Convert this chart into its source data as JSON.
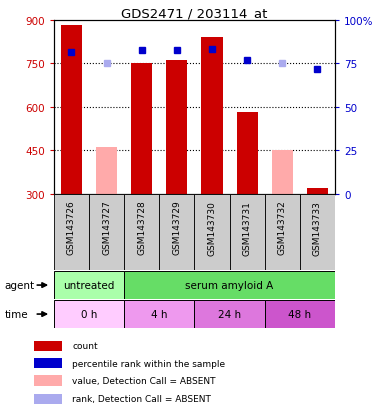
{
  "title": "GDS2471 / 203114_at",
  "samples": [
    "GSM143726",
    "GSM143727",
    "GSM143728",
    "GSM143729",
    "GSM143730",
    "GSM143731",
    "GSM143732",
    "GSM143733"
  ],
  "bar_values": [
    880,
    460,
    750,
    760,
    840,
    580,
    450,
    320
  ],
  "bar_colors": [
    "#cc0000",
    "#ffaaaa",
    "#cc0000",
    "#cc0000",
    "#cc0000",
    "#cc0000",
    "#ffaaaa",
    "#cc0000"
  ],
  "dot_values": [
    790,
    750,
    795,
    795,
    800,
    760,
    750,
    730
  ],
  "dot_colors": [
    "#0000cc",
    "#aaaaee",
    "#0000cc",
    "#0000cc",
    "#0000cc",
    "#0000cc",
    "#aaaaee",
    "#0000cc"
  ],
  "ylim_left": [
    300,
    900
  ],
  "ylim_right": [
    0,
    100
  ],
  "yticks_left": [
    300,
    450,
    600,
    750,
    900
  ],
  "yticks_right": [
    0,
    25,
    50,
    75,
    100
  ],
  "ytick_labels_right": [
    "0",
    "25",
    "50",
    "75",
    "100%"
  ],
  "gridlines": [
    750,
    600,
    450
  ],
  "bar_width": 0.6,
  "agent_labels": [
    {
      "text": "untreated",
      "start": 0,
      "end": 2,
      "color": "#aaffaa"
    },
    {
      "text": "serum amyloid A",
      "start": 2,
      "end": 8,
      "color": "#66dd66"
    }
  ],
  "time_labels": [
    {
      "text": "0 h",
      "start": 0,
      "end": 2,
      "color": "#ffccff"
    },
    {
      "text": "4 h",
      "start": 2,
      "end": 4,
      "color": "#ee99ee"
    },
    {
      "text": "24 h",
      "start": 4,
      "end": 6,
      "color": "#dd77dd"
    },
    {
      "text": "48 h",
      "start": 6,
      "end": 8,
      "color": "#cc55cc"
    }
  ],
  "legend_items": [
    {
      "color": "#cc0000",
      "label": "count"
    },
    {
      "color": "#0000cc",
      "label": "percentile rank within the sample"
    },
    {
      "color": "#ffaaaa",
      "label": "value, Detection Call = ABSENT"
    },
    {
      "color": "#aaaaee",
      "label": "rank, Detection Call = ABSENT"
    }
  ],
  "left_tick_color": "#cc0000",
  "right_tick_color": "#0000cc",
  "plot_bg": "#ffffff"
}
